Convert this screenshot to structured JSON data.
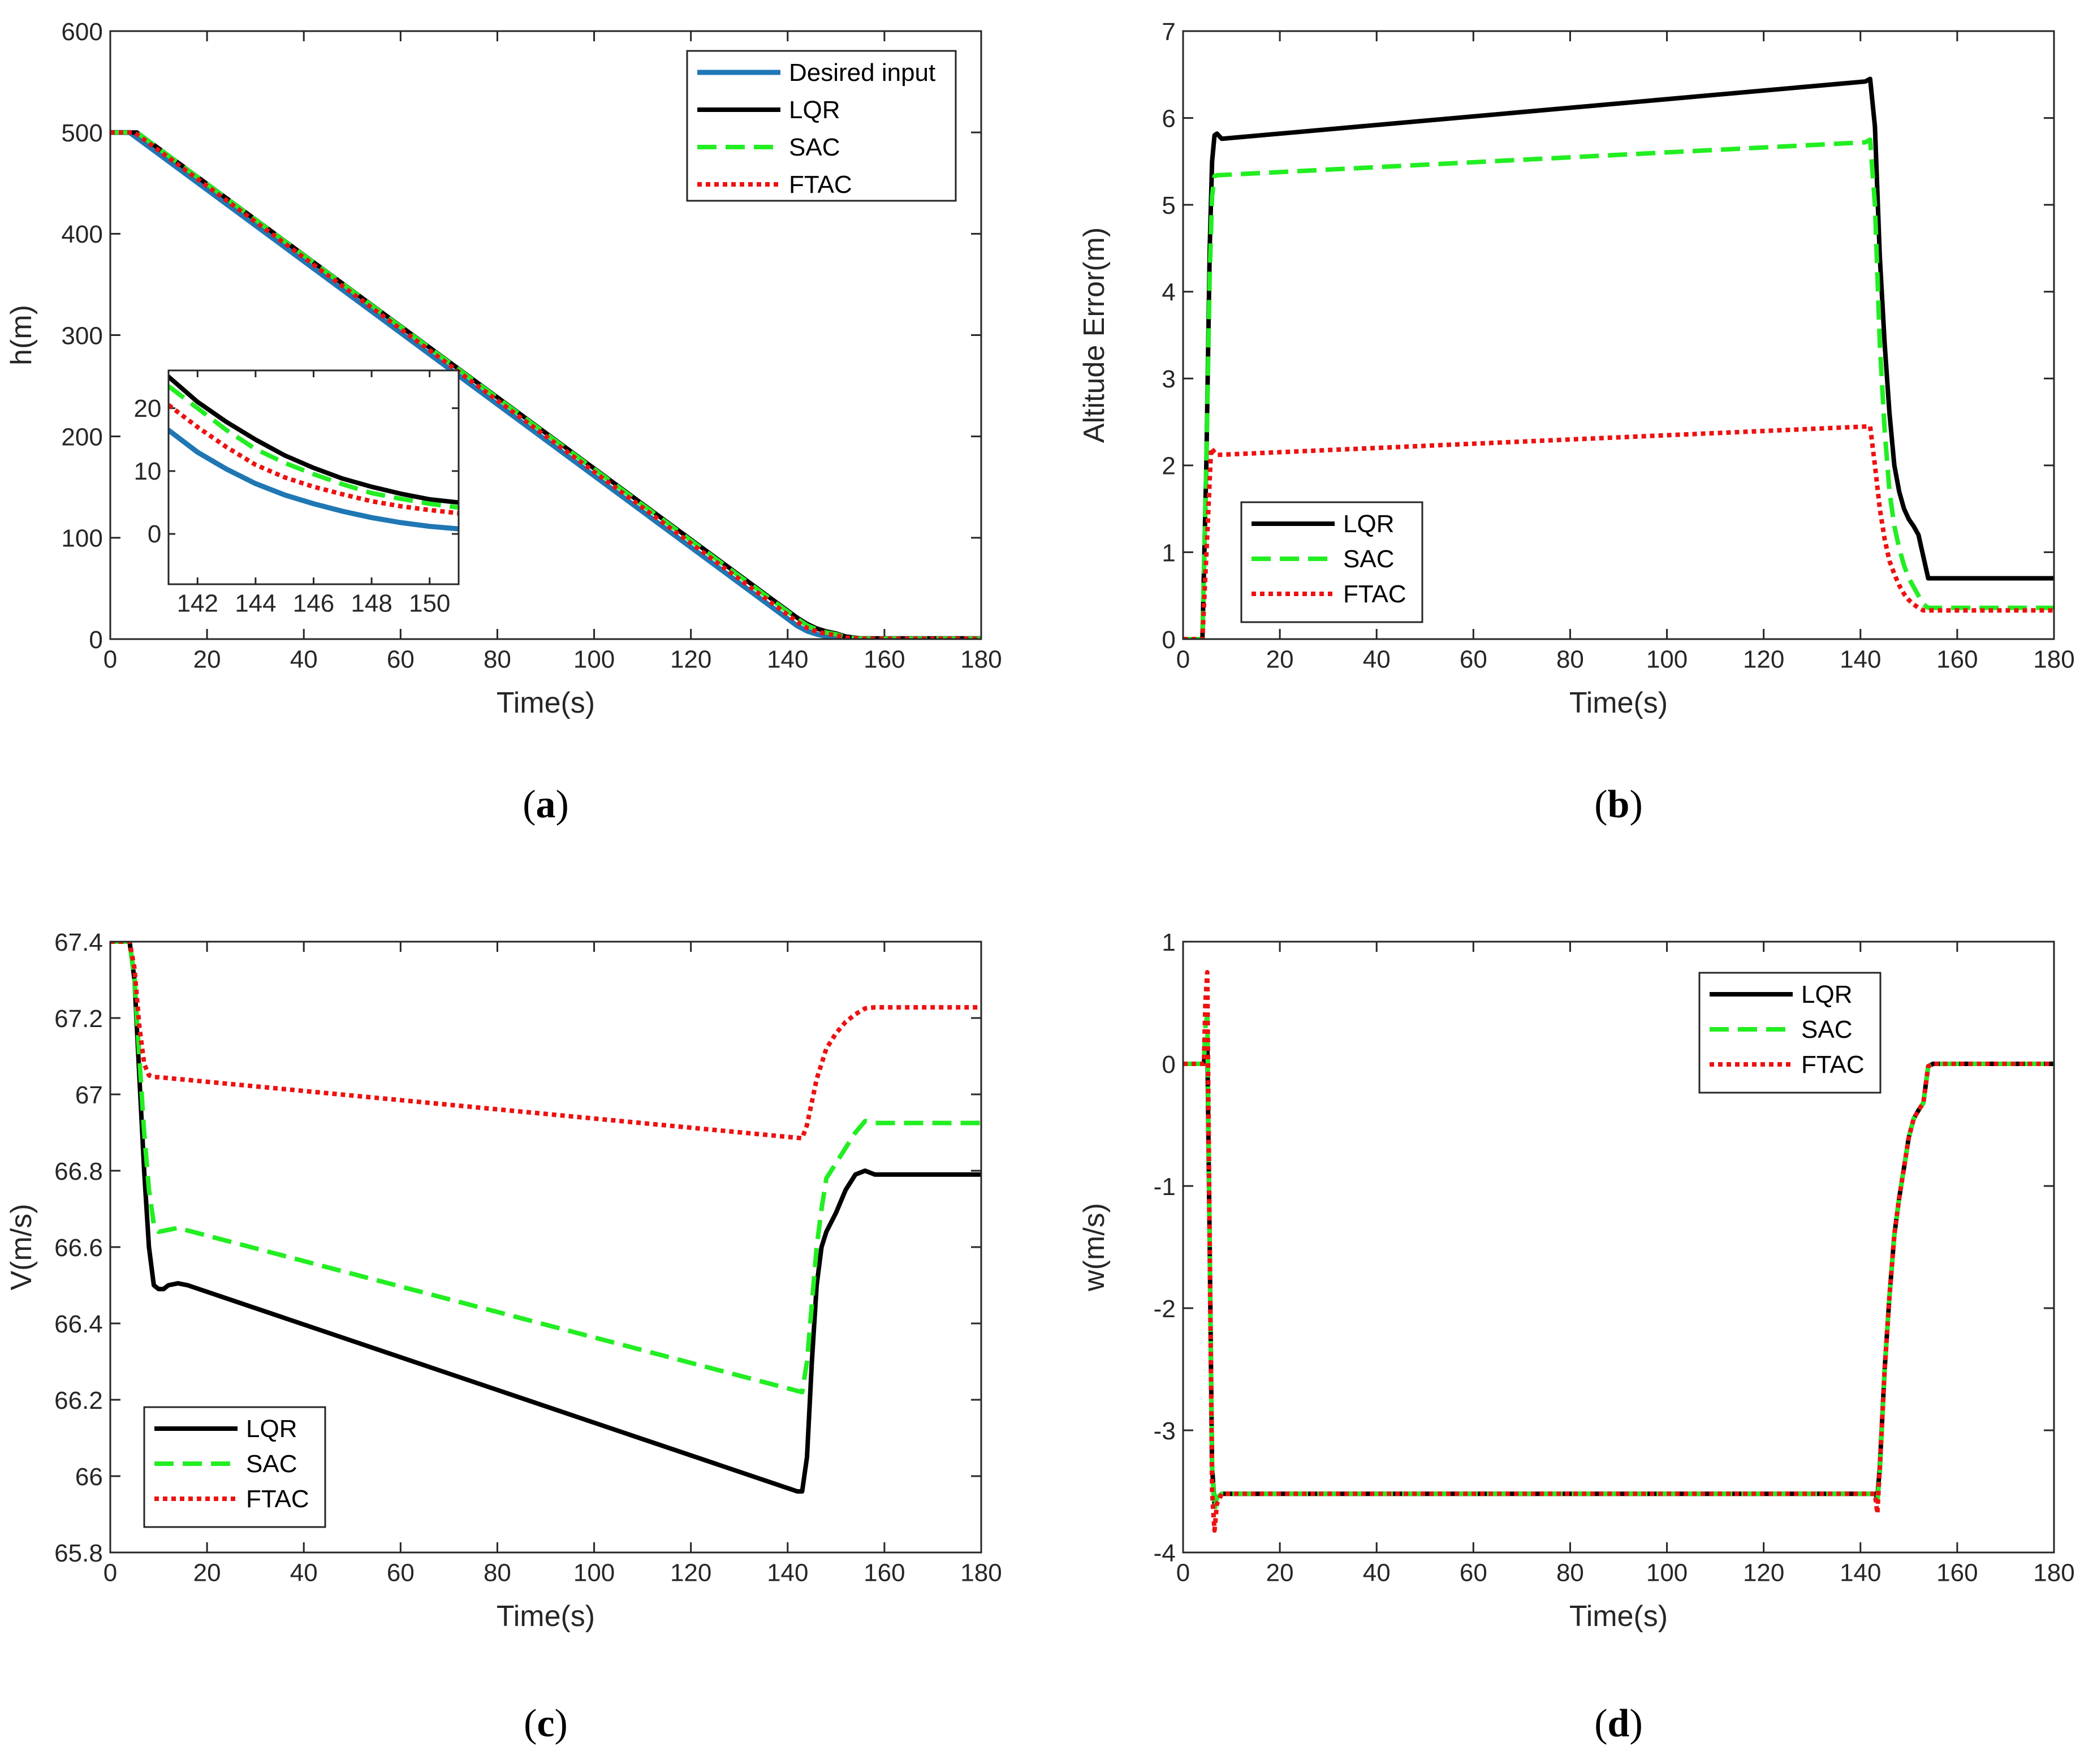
{
  "chart_data": [
    {
      "id": "a",
      "caption_letter": "a",
      "type": "line",
      "xlabel": "Time(s)",
      "ylabel": "h(m)",
      "xlim": [
        0,
        180
      ],
      "ylim": [
        0,
        600
      ],
      "xticks": [
        0,
        20,
        40,
        60,
        80,
        100,
        120,
        140,
        160,
        180
      ],
      "yticks": [
        0,
        100,
        200,
        300,
        400,
        500,
        600
      ],
      "legend_position": "top-right",
      "series": [
        {
          "name": "Desired input",
          "color": "#1f77b4",
          "style": "solid",
          "width": 9,
          "x": [
            0,
            4,
            142,
            144,
            146,
            148,
            150,
            152,
            180
          ],
          "y": [
            500,
            500,
            13,
            8,
            4.8,
            2.6,
            1.2,
            0,
            0
          ]
        },
        {
          "name": "LQR",
          "color": "#000000",
          "style": "solid",
          "width": 8,
          "x": [
            0,
            5.5,
            142,
            144,
            146,
            148,
            150,
            152,
            155,
            180
          ],
          "y": [
            500,
            500,
            21,
            15,
            10.5,
            7.5,
            5.5,
            2.5,
            0.7,
            0.7
          ]
        },
        {
          "name": "SAC",
          "color": "#22ee22",
          "style": "dash",
          "width": 8,
          "x": [
            0,
            5.5,
            142,
            144,
            146,
            148,
            150,
            152,
            155,
            180
          ],
          "y": [
            500,
            500,
            20,
            13.5,
            9.5,
            6.5,
            4.8,
            2,
            0.4,
            0.4
          ]
        },
        {
          "name": "FTAC",
          "color": "#ee1111",
          "style": "dot",
          "width": 8,
          "x": [
            0,
            5,
            142,
            144,
            146,
            148,
            150,
            152,
            155,
            180
          ],
          "y": [
            500,
            500,
            17,
            11,
            7.5,
            5.2,
            3.8,
            1.5,
            0.3,
            0.3
          ]
        }
      ],
      "inset": {
        "xlim": [
          141,
          151
        ],
        "ylim": [
          -8,
          26
        ],
        "xticks": [
          142,
          144,
          146,
          148,
          150
        ],
        "yticks": [
          0,
          10,
          20
        ],
        "series": [
          {
            "name": "Desired input",
            "color": "#1f77b4",
            "style": "solid",
            "width": 9,
            "x": [
              141,
              142,
              143,
              144,
              145,
              146,
              147,
              148,
              149,
              150,
              151
            ],
            "y": [
              16.5,
              13,
              10.3,
              8,
              6.2,
              4.8,
              3.6,
              2.6,
              1.8,
              1.2,
              0.8
            ]
          },
          {
            "name": "LQR",
            "color": "#000000",
            "style": "solid",
            "width": 8,
            "x": [
              141,
              142,
              143,
              144,
              145,
              146,
              147,
              148,
              149,
              150,
              151
            ],
            "y": [
              25,
              21,
              17.8,
              15,
              12.5,
              10.5,
              8.8,
              7.5,
              6.4,
              5.5,
              5
            ]
          },
          {
            "name": "SAC",
            "color": "#22ee22",
            "style": "dash",
            "width": 8,
            "x": [
              141,
              142,
              143,
              144,
              145,
              146,
              147,
              148,
              149,
              150,
              151
            ],
            "y": [
              23.5,
              20,
              16.5,
              13.5,
              11.3,
              9.5,
              7.9,
              6.5,
              5.6,
              4.8,
              4.2
            ]
          },
          {
            "name": "FTAC",
            "color": "#ee1111",
            "style": "dot",
            "width": 8,
            "x": [
              141,
              142,
              143,
              144,
              145,
              146,
              147,
              148,
              149,
              150,
              151
            ],
            "y": [
              20.5,
              17,
              13.8,
              11,
              9,
              7.5,
              6.3,
              5.2,
              4.4,
              3.8,
              3.3
            ]
          }
        ]
      }
    },
    {
      "id": "b",
      "caption_letter": "b",
      "type": "line",
      "xlabel": "Time(s)",
      "ylabel": "Altitude Error(m)",
      "xlim": [
        0,
        180
      ],
      "ylim": [
        0,
        7
      ],
      "xticks": [
        0,
        20,
        40,
        60,
        80,
        100,
        120,
        140,
        160,
        180
      ],
      "yticks": [
        0,
        1,
        2,
        3,
        4,
        5,
        6,
        7
      ],
      "legend_position": "bottom-left",
      "series": [
        {
          "name": "LQR",
          "color": "#000000",
          "style": "solid",
          "width": 8,
          "x": [
            0,
            4,
            4.8,
            5.5,
            6,
            6.5,
            7,
            8,
            141,
            142,
            143,
            144,
            145,
            146,
            147,
            148,
            149,
            150,
            151,
            152,
            153,
            154,
            155,
            180
          ],
          "y": [
            0,
            0,
            2,
            4.5,
            5.5,
            5.8,
            5.82,
            5.76,
            6.42,
            6.45,
            5.9,
            4.4,
            3.4,
            2.6,
            2,
            1.7,
            1.5,
            1.38,
            1.3,
            1.2,
            0.95,
            0.7,
            0.7,
            0.7
          ]
        },
        {
          "name": "SAC",
          "color": "#22ee22",
          "style": "dash",
          "width": 8,
          "x": [
            0,
            4,
            4.8,
            5.5,
            6,
            6.5,
            7,
            141,
            142,
            143,
            144,
            145,
            146,
            147,
            148,
            149,
            150,
            151,
            152,
            153,
            154,
            180
          ],
          "y": [
            0,
            0,
            2,
            4.2,
            5.1,
            5.33,
            5.34,
            5.72,
            5.75,
            5,
            3.4,
            2.4,
            1.7,
            1.3,
            1.05,
            0.85,
            0.7,
            0.6,
            0.5,
            0.4,
            0.36,
            0.36
          ]
        },
        {
          "name": "FTAC",
          "color": "#ee1111",
          "style": "dot",
          "width": 8,
          "x": [
            0,
            4,
            5,
            5.8,
            6.5,
            7,
            142,
            143,
            144,
            145,
            146,
            147,
            148,
            149,
            150,
            151,
            152,
            153,
            180
          ],
          "y": [
            0,
            0,
            1.2,
            2.2,
            2.15,
            2.12,
            2.45,
            2,
            1.5,
            1.15,
            0.9,
            0.75,
            0.62,
            0.52,
            0.45,
            0.4,
            0.36,
            0.33,
            0.33
          ]
        }
      ]
    },
    {
      "id": "c",
      "caption_letter": "c",
      "type": "line",
      "xlabel": "Time(s)",
      "ylabel": "V(m/s)",
      "xlim": [
        0,
        180
      ],
      "ylim": [
        65.8,
        67.4
      ],
      "xticks": [
        0,
        20,
        40,
        60,
        80,
        100,
        120,
        140,
        160,
        180
      ],
      "yticks": [
        65.8,
        66,
        66.2,
        66.4,
        66.6,
        66.8,
        67,
        67.2,
        67.4
      ],
      "legend_position": "bottom-left",
      "series": [
        {
          "name": "LQR",
          "color": "#000000",
          "style": "solid",
          "width": 8,
          "x": [
            0,
            4,
            5,
            6,
            7,
            8,
            9,
            10,
            11,
            12,
            14,
            16,
            142,
            143,
            144,
            145,
            146,
            147,
            148,
            150,
            152,
            154,
            156,
            158,
            160,
            180
          ],
          "y": [
            67.4,
            67.4,
            67.3,
            67.05,
            66.8,
            66.6,
            66.5,
            66.49,
            66.49,
            66.5,
            66.505,
            66.5,
            65.96,
            65.96,
            66.05,
            66.3,
            66.5,
            66.6,
            66.64,
            66.69,
            66.75,
            66.79,
            66.8,
            66.79,
            66.79,
            66.79
          ]
        },
        {
          "name": "SAC",
          "color": "#22ee22",
          "style": "dash",
          "width": 8,
          "x": [
            0,
            4,
            5,
            6,
            7,
            8,
            9,
            10,
            12,
            14,
            143,
            144,
            145,
            146,
            147,
            148,
            150,
            152,
            154,
            156,
            158,
            180
          ],
          "y": [
            67.4,
            67.4,
            67.3,
            67.1,
            66.9,
            66.75,
            66.66,
            66.64,
            66.645,
            66.65,
            66.22,
            66.3,
            66.45,
            66.6,
            66.7,
            66.78,
            66.82,
            66.86,
            66.9,
            66.93,
            66.925,
            66.925
          ]
        },
        {
          "name": "FTAC",
          "color": "#ee1111",
          "style": "dot",
          "width": 8,
          "x": [
            0,
            4,
            5,
            6,
            7,
            8,
            9,
            10,
            143,
            144,
            145,
            146,
            147,
            148,
            150,
            152,
            154,
            156,
            158,
            180
          ],
          "y": [
            67.4,
            67.4,
            67.33,
            67.18,
            67.08,
            67.05,
            67.045,
            67.045,
            66.885,
            66.92,
            66.98,
            67.04,
            67.08,
            67.12,
            67.16,
            67.19,
            67.21,
            67.225,
            67.228,
            67.228
          ]
        }
      ]
    },
    {
      "id": "d",
      "caption_letter": "d",
      "type": "line",
      "xlabel": "Time(s)",
      "ylabel": "w(m/s)",
      "xlim": [
        0,
        180
      ],
      "ylim": [
        -4,
        1
      ],
      "xticks": [
        0,
        20,
        40,
        60,
        80,
        100,
        120,
        140,
        160,
        180
      ],
      "yticks": [
        -4,
        -3,
        -2,
        -1,
        0,
        1
      ],
      "legend_position": "top-right",
      "series": [
        {
          "name": "LQR",
          "color": "#000000",
          "style": "solid",
          "width": 8,
          "x": [
            0,
            4.3,
            4.6,
            5,
            5.5,
            6,
            6.5,
            7,
            8,
            143,
            143.5,
            144,
            145,
            146,
            147,
            148,
            149,
            150,
            151,
            152,
            153,
            154,
            155,
            180
          ],
          "y": [
            0,
            0,
            0.15,
            0.2,
            -1.5,
            -3.3,
            -3.6,
            -3.55,
            -3.52,
            -3.52,
            -3.55,
            -3.3,
            -2.5,
            -1.9,
            -1.4,
            -1.1,
            -0.85,
            -0.6,
            -0.45,
            -0.38,
            -0.32,
            -0.02,
            0,
            0
          ]
        },
        {
          "name": "SAC",
          "color": "#22ee22",
          "style": "dash",
          "width": 8,
          "x": [
            0,
            4.3,
            4.6,
            5,
            5.5,
            6,
            6.5,
            7,
            8,
            143,
            143.5,
            144,
            145,
            146,
            147,
            148,
            149,
            150,
            151,
            152,
            153,
            154,
            155,
            180
          ],
          "y": [
            0,
            0,
            0.3,
            0.4,
            -1.5,
            -3.3,
            -3.65,
            -3.55,
            -3.52,
            -3.52,
            -3.58,
            -3.35,
            -2.5,
            -1.9,
            -1.4,
            -1.1,
            -0.85,
            -0.6,
            -0.45,
            -0.38,
            -0.32,
            -0.02,
            0,
            0
          ]
        },
        {
          "name": "FTAC",
          "color": "#ee1111",
          "style": "dot",
          "width": 8,
          "x": [
            0,
            4.3,
            4.6,
            5,
            5.5,
            6,
            6.5,
            7,
            8,
            143,
            143.5,
            144,
            145,
            146,
            147,
            148,
            149,
            150,
            151,
            152,
            153,
            154,
            155,
            180
          ],
          "y": [
            0,
            0,
            0.5,
            0.75,
            -1.5,
            -3.5,
            -3.82,
            -3.6,
            -3.52,
            -3.52,
            -3.68,
            -3.3,
            -2.5,
            -1.9,
            -1.4,
            -1.1,
            -0.85,
            -0.6,
            -0.45,
            -0.38,
            -0.32,
            -0.02,
            0,
            0
          ]
        }
      ]
    }
  ]
}
